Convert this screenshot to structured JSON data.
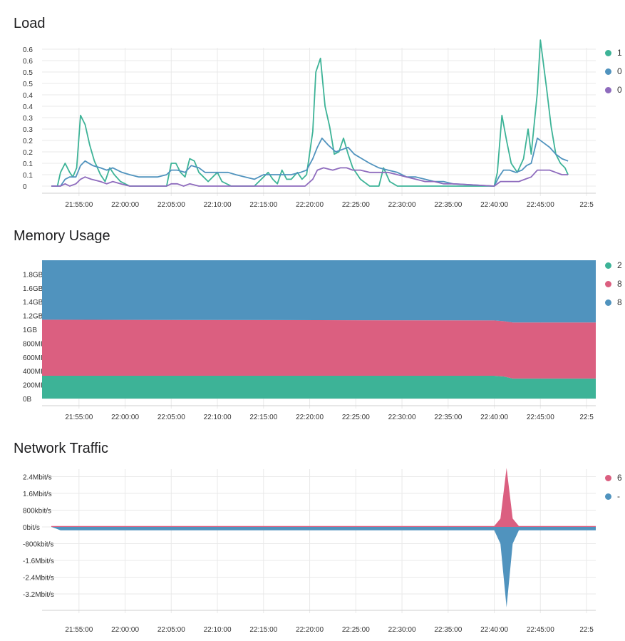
{
  "colors": {
    "green": "#3db397",
    "pink": "#db5f80",
    "blue": "#5093be",
    "purple": "#8e6bbd",
    "grid": "#e9e9e9"
  },
  "panels": [
    {
      "title": "Load",
      "legend": [
        {
          "text": "1",
          "color": "#3db397"
        },
        {
          "text": "0",
          "color": "#5093be"
        },
        {
          "text": "0",
          "color": "#8e6bbd"
        }
      ]
    },
    {
      "title": "Memory Usage",
      "legend": [
        {
          "text": "2",
          "color": "#3db397"
        },
        {
          "text": "8",
          "color": "#db5f80"
        },
        {
          "text": "8",
          "color": "#5093be"
        }
      ]
    },
    {
      "title": "Network Traffic",
      "legend": [
        {
          "text": "6",
          "color": "#db5f80"
        },
        {
          "text": "-",
          "color": "#5093be"
        }
      ]
    }
  ],
  "chart_data": [
    {
      "type": "line",
      "title": "Load",
      "x_range": [
        "21:51:00",
        "22:51:00"
      ],
      "x_ticks": [
        "21:55:00",
        "22:00:00",
        "22:05:00",
        "22:10:00",
        "22:15:00",
        "22:20:00",
        "22:25:00",
        "22:30:00",
        "22:35:00",
        "22:40:00",
        "22:45:00",
        "22:5"
      ],
      "y_ticks": [
        "0",
        "0.1",
        "0.1",
        "0.2",
        "0.2",
        "0.3",
        "0.3",
        "0.4",
        "0.4",
        "0.5",
        "0.5",
        "0.6",
        "0.6"
      ],
      "ylim": [
        0,
        0.6
      ],
      "grid": true,
      "series": [
        {
          "color": "#3db397",
          "points": [
            [
              "21:52:00",
              0
            ],
            [
              "21:52:40",
              0
            ],
            [
              "21:53:00",
              0.06
            ],
            [
              "21:53:30",
              0.1
            ],
            [
              "21:54:00",
              0.06
            ],
            [
              "21:54:20",
              0.04
            ],
            [
              "21:54:45",
              0.08
            ],
            [
              "21:55:10",
              0.31
            ],
            [
              "21:55:40",
              0.27
            ],
            [
              "21:56:10",
              0.18
            ],
            [
              "21:56:40",
              0.11
            ],
            [
              "21:57:20",
              0.05
            ],
            [
              "21:57:50",
              0.02
            ],
            [
              "21:58:20",
              0.08
            ],
            [
              "21:58:50",
              0.05
            ],
            [
              "21:59:30",
              0.02
            ],
            [
              "22:00:00",
              0.01
            ],
            [
              "22:00:30",
              0
            ],
            [
              "22:03:00",
              0
            ],
            [
              "22:04:30",
              0
            ],
            [
              "22:05:00",
              0.1
            ],
            [
              "22:05:30",
              0.1
            ],
            [
              "22:06:00",
              0.06
            ],
            [
              "22:06:30",
              0.04
            ],
            [
              "22:07:00",
              0.12
            ],
            [
              "22:07:30",
              0.11
            ],
            [
              "22:08:00",
              0.06
            ],
            [
              "22:08:30",
              0.04
            ],
            [
              "22:09:00",
              0.02
            ],
            [
              "22:10:00",
              0.06
            ],
            [
              "22:10:30",
              0.02
            ],
            [
              "22:11:30",
              0
            ],
            [
              "22:14:00",
              0
            ],
            [
              "22:15:30",
              0.06
            ],
            [
              "22:16:00",
              0.03
            ],
            [
              "22:16:30",
              0.01
            ],
            [
              "22:17:00",
              0.07
            ],
            [
              "22:17:30",
              0.03
            ],
            [
              "22:18:00",
              0.03
            ],
            [
              "22:18:40",
              0.06
            ],
            [
              "22:19:10",
              0.03
            ],
            [
              "22:19:40",
              0.05
            ],
            [
              "22:20:20",
              0.24
            ],
            [
              "22:20:40",
              0.5
            ],
            [
              "22:21:10",
              0.56
            ],
            [
              "22:21:40",
              0.35
            ],
            [
              "22:22:10",
              0.26
            ],
            [
              "22:22:40",
              0.14
            ],
            [
              "22:23:10",
              0.15
            ],
            [
              "22:23:40",
              0.21
            ],
            [
              "22:24:10",
              0.14
            ],
            [
              "22:24:40",
              0.08
            ],
            [
              "22:25:30",
              0.03
            ],
            [
              "22:26:30",
              0
            ],
            [
              "22:27:30",
              0
            ],
            [
              "22:28:00",
              0.08
            ],
            [
              "22:28:40",
              0.02
            ],
            [
              "22:29:30",
              0
            ],
            [
              "22:40:00",
              0
            ],
            [
              "22:40:20",
              0.06
            ],
            [
              "22:40:50",
              0.31
            ],
            [
              "22:41:20",
              0.2
            ],
            [
              "22:41:50",
              0.1
            ],
            [
              "22:42:30",
              0.06
            ],
            [
              "22:43:10",
              0.12
            ],
            [
              "22:43:40",
              0.25
            ],
            [
              "22:44:00",
              0.14
            ],
            [
              "22:44:40",
              0.41
            ],
            [
              "22:45:00",
              0.64
            ],
            [
              "22:45:40",
              0.43
            ],
            [
              "22:46:10",
              0.26
            ],
            [
              "22:46:40",
              0.14
            ],
            [
              "22:47:10",
              0.1
            ],
            [
              "22:47:40",
              0.08
            ],
            [
              "22:48:00",
              0.05
            ]
          ]
        },
        {
          "color": "#5093be",
          "points": [
            [
              "21:52:00",
              0
            ],
            [
              "21:53:00",
              0
            ],
            [
              "21:53:30",
              0.03
            ],
            [
              "21:54:00",
              0.04
            ],
            [
              "21:54:40",
              0.04
            ],
            [
              "21:55:10",
              0.09
            ],
            [
              "21:55:40",
              0.11
            ],
            [
              "21:56:30",
              0.09
            ],
            [
              "21:57:20",
              0.08
            ],
            [
              "21:58:00",
              0.07
            ],
            [
              "21:58:40",
              0.08
            ],
            [
              "21:59:40",
              0.06
            ],
            [
              "22:00:30",
              0.05
            ],
            [
              "22:01:30",
              0.04
            ],
            [
              "22:02:30",
              0.04
            ],
            [
              "22:03:30",
              0.04
            ],
            [
              "22:04:30",
              0.05
            ],
            [
              "22:05:00",
              0.07
            ],
            [
              "22:05:40",
              0.07
            ],
            [
              "22:06:30",
              0.06
            ],
            [
              "22:07:10",
              0.09
            ],
            [
              "22:08:00",
              0.08
            ],
            [
              "22:08:40",
              0.06
            ],
            [
              "22:09:30",
              0.06
            ],
            [
              "22:10:20",
              0.06
            ],
            [
              "22:11:10",
              0.06
            ],
            [
              "22:12:00",
              0.05
            ],
            [
              "22:13:00",
              0.04
            ],
            [
              "22:14:00",
              0.03
            ],
            [
              "22:15:00",
              0.05
            ],
            [
              "22:16:00",
              0.05
            ],
            [
              "22:17:00",
              0.05
            ],
            [
              "22:18:00",
              0.05
            ],
            [
              "22:19:00",
              0.06
            ],
            [
              "22:19:40",
              0.07
            ],
            [
              "22:20:20",
              0.12
            ],
            [
              "22:20:50",
              0.17
            ],
            [
              "22:21:20",
              0.21
            ],
            [
              "22:22:00",
              0.18
            ],
            [
              "22:22:50",
              0.15
            ],
            [
              "22:23:30",
              0.16
            ],
            [
              "22:24:10",
              0.17
            ],
            [
              "22:24:50",
              0.14
            ],
            [
              "22:25:40",
              0.12
            ],
            [
              "22:26:30",
              0.1
            ],
            [
              "22:27:30",
              0.08
            ],
            [
              "22:28:30",
              0.07
            ],
            [
              "22:29:30",
              0.06
            ],
            [
              "22:30:30",
              0.04
            ],
            [
              "22:31:30",
              0.04
            ],
            [
              "22:32:30",
              0.03
            ],
            [
              "22:33:30",
              0.02
            ],
            [
              "22:34:30",
              0.02
            ],
            [
              "22:35:30",
              0.01
            ],
            [
              "22:40:00",
              0
            ],
            [
              "22:40:30",
              0.04
            ],
            [
              "22:41:00",
              0.07
            ],
            [
              "22:41:40",
              0.07
            ],
            [
              "22:42:20",
              0.06
            ],
            [
              "22:43:00",
              0.07
            ],
            [
              "22:43:30",
              0.09
            ],
            [
              "22:44:00",
              0.1
            ],
            [
              "22:44:40",
              0.21
            ],
            [
              "22:45:20",
              0.19
            ],
            [
              "22:46:00",
              0.17
            ],
            [
              "22:46:40",
              0.14
            ],
            [
              "22:47:20",
              0.12
            ],
            [
              "22:48:00",
              0.11
            ]
          ]
        },
        {
          "color": "#8e6bbd",
          "points": [
            [
              "21:52:00",
              0
            ],
            [
              "21:53:00",
              0
            ],
            [
              "21:53:30",
              0.01
            ],
            [
              "21:54:00",
              0
            ],
            [
              "21:54:40",
              0.01
            ],
            [
              "21:55:10",
              0.03
            ],
            [
              "21:55:40",
              0.04
            ],
            [
              "21:56:20",
              0.03
            ],
            [
              "21:57:20",
              0.02
            ],
            [
              "21:58:00",
              0.01
            ],
            [
              "21:58:40",
              0.02
            ],
            [
              "21:59:30",
              0.01
            ],
            [
              "22:00:30",
              0
            ],
            [
              "22:04:30",
              0
            ],
            [
              "22:05:00",
              0.01
            ],
            [
              "22:05:40",
              0.01
            ],
            [
              "22:06:20",
              0
            ],
            [
              "22:07:00",
              0.01
            ],
            [
              "22:08:00",
              0
            ],
            [
              "22:19:30",
              0
            ],
            [
              "22:20:20",
              0.03
            ],
            [
              "22:20:50",
              0.07
            ],
            [
              "22:21:30",
              0.08
            ],
            [
              "22:22:30",
              0.07
            ],
            [
              "22:23:20",
              0.08
            ],
            [
              "22:24:00",
              0.08
            ],
            [
              "22:24:40",
              0.07
            ],
            [
              "22:25:30",
              0.07
            ],
            [
              "22:26:30",
              0.06
            ],
            [
              "22:27:30",
              0.06
            ],
            [
              "22:28:30",
              0.06
            ],
            [
              "22:29:30",
              0.05
            ],
            [
              "22:30:30",
              0.04
            ],
            [
              "22:31:30",
              0.03
            ],
            [
              "22:32:30",
              0.02
            ],
            [
              "22:33:30",
              0.02
            ],
            [
              "22:34:30",
              0.01
            ],
            [
              "22:35:30",
              0.01
            ],
            [
              "22:40:00",
              0
            ],
            [
              "22:40:40",
              0.02
            ],
            [
              "22:41:20",
              0.02
            ],
            [
              "22:42:00",
              0.02
            ],
            [
              "22:42:40",
              0.02
            ],
            [
              "22:43:20",
              0.03
            ],
            [
              "22:44:00",
              0.04
            ],
            [
              "22:44:40",
              0.07
            ],
            [
              "22:45:20",
              0.07
            ],
            [
              "22:46:00",
              0.07
            ],
            [
              "22:46:40",
              0.06
            ],
            [
              "22:47:20",
              0.05
            ],
            [
              "22:48:00",
              0.05
            ]
          ]
        }
      ]
    },
    {
      "type": "area",
      "title": "Memory Usage",
      "x_range": [
        "21:51:00",
        "22:51:00"
      ],
      "x_ticks": [
        "21:55:00",
        "22:00:00",
        "22:05:00",
        "22:10:00",
        "22:15:00",
        "22:20:00",
        "22:25:00",
        "22:30:00",
        "22:35:00",
        "22:40:00",
        "22:45:00",
        "22:5"
      ],
      "y_ticks": [
        "0B",
        "200MI",
        "400MI",
        "600MI",
        "800MI",
        "1GB",
        "1.2GB",
        "1.4GB",
        "1.6GB",
        "1.8GB"
      ],
      "ylim_mb": [
        0,
        2000
      ],
      "stacked": true,
      "grid": true,
      "x": [
        "21:51:00",
        "22:40:00",
        "22:41:00",
        "22:42:00",
        "22:48:00"
      ],
      "series": [
        {
          "color": "#3db397",
          "values_mb": [
            330,
            330,
            320,
            290,
            290
          ]
        },
        {
          "color": "#db5f80",
          "values_mb": [
            810,
            800,
            800,
            810,
            810
          ]
        },
        {
          "color": "#5093be",
          "values_mb": [
            860,
            870,
            880,
            900,
            900
          ]
        }
      ]
    },
    {
      "type": "area",
      "title": "Network Traffic",
      "x_range": [
        "21:51:00",
        "22:51:00"
      ],
      "x_ticks": [
        "21:55:00",
        "22:00:00",
        "22:05:00",
        "22:10:00",
        "22:15:00",
        "22:20:00",
        "22:25:00",
        "22:30:00",
        "22:35:00",
        "22:40:00",
        "22:45:00",
        "22:5"
      ],
      "y_ticks": [
        "2.4Mbit/s",
        "1.6Mbit/s",
        "800kbit/s",
        "0bit/s",
        "-800kbit/s",
        "-1.6Mbit/s",
        "-2.4Mbit/s",
        "-3.2Mbit/s"
      ],
      "ylim_kbit": [
        -3840,
        2880
      ],
      "grid": true,
      "series": [
        {
          "color": "#db5f80",
          "points": [
            [
              "21:52:00",
              40
            ],
            [
              "22:40:00",
              40
            ],
            [
              "22:40:40",
              400
            ],
            [
              "22:41:20",
              2820
            ],
            [
              "22:42:00",
              400
            ],
            [
              "22:42:40",
              40
            ],
            [
              "22:48:00",
              40
            ]
          ]
        },
        {
          "color": "#5093be",
          "points": [
            [
              "21:52:00",
              0
            ],
            [
              "21:52:30",
              -80
            ],
            [
              "21:53:00",
              -160
            ],
            [
              "22:40:00",
              -160
            ],
            [
              "22:40:40",
              -800
            ],
            [
              "22:41:20",
              -3840
            ],
            [
              "22:42:00",
              -800
            ],
            [
              "22:42:40",
              -160
            ],
            [
              "22:48:00",
              -160
            ]
          ]
        }
      ]
    }
  ]
}
